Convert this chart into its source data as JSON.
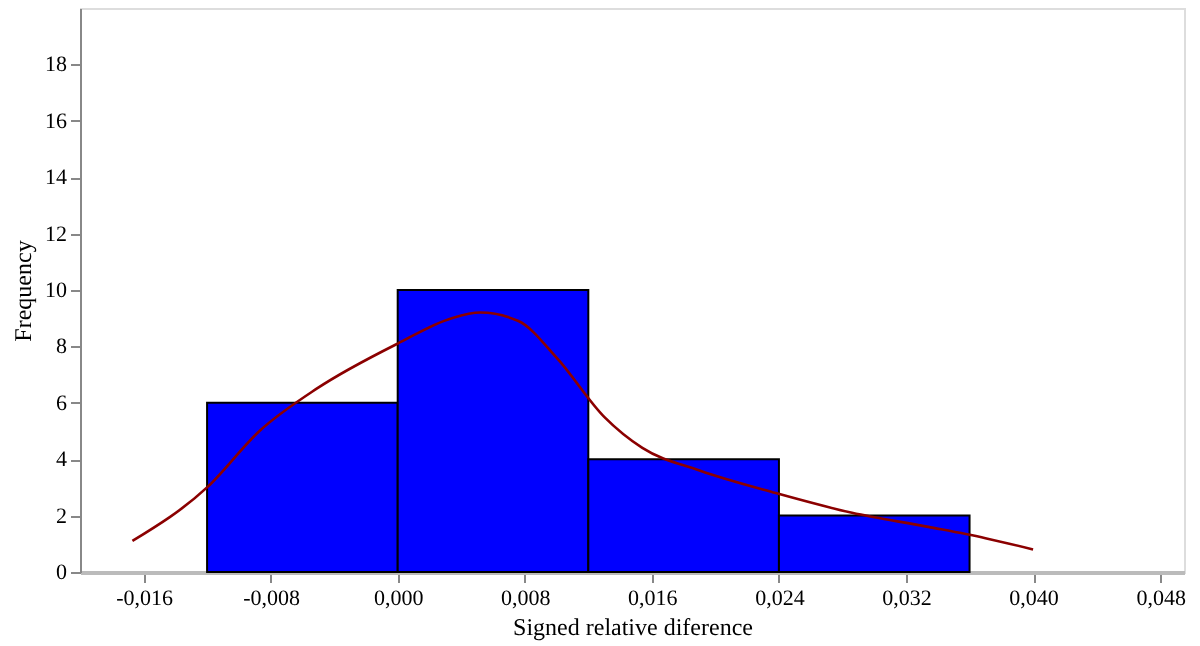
{
  "chart_data": {
    "type": "histogram",
    "xlabel": "Signed relative diference",
    "ylabel": "Frequency",
    "bins": [
      -0.012,
      0.0,
      0.012,
      0.024,
      0.036
    ],
    "values": [
      6,
      10,
      4,
      2
    ],
    "color": "#0000ff",
    "series": [
      {
        "type": "line",
        "color": "#8b0000",
        "x": [
          -0.0167,
          -0.012,
          -0.0087,
          -0.0051,
          0.0,
          0.0034,
          0.0052,
          0.0076,
          0.01,
          0.013,
          0.0154,
          0.019,
          0.0238,
          0.0286,
          0.0334,
          0.037,
          0.04
        ],
        "values": [
          1.1,
          3.0,
          5.0,
          6.5,
          8.1,
          9.0,
          9.2,
          8.9,
          7.6,
          5.5,
          4.4,
          3.6,
          2.8,
          2.1,
          1.6,
          1.2,
          0.8
        ]
      }
    ],
    "xlim": [
      -0.02,
      0.0495
    ],
    "xticks": [
      {
        "value": -0.016,
        "label": "-0,016"
      },
      {
        "value": -0.008,
        "label": "-0,008"
      },
      {
        "value": 0.0,
        "label": "0,000"
      },
      {
        "value": 0.008,
        "label": "0,008"
      },
      {
        "value": 0.016,
        "label": "0,016"
      },
      {
        "value": 0.024,
        "label": "0,024"
      },
      {
        "value": 0.032,
        "label": "0,032"
      },
      {
        "value": 0.04,
        "label": "0,040"
      },
      {
        "value": 0.048,
        "label": "0,048"
      }
    ],
    "ylim": [
      0,
      20
    ],
    "yticks": [
      0,
      2,
      4,
      6,
      8,
      10,
      12,
      14,
      16,
      18
    ],
    "grid": false
  }
}
